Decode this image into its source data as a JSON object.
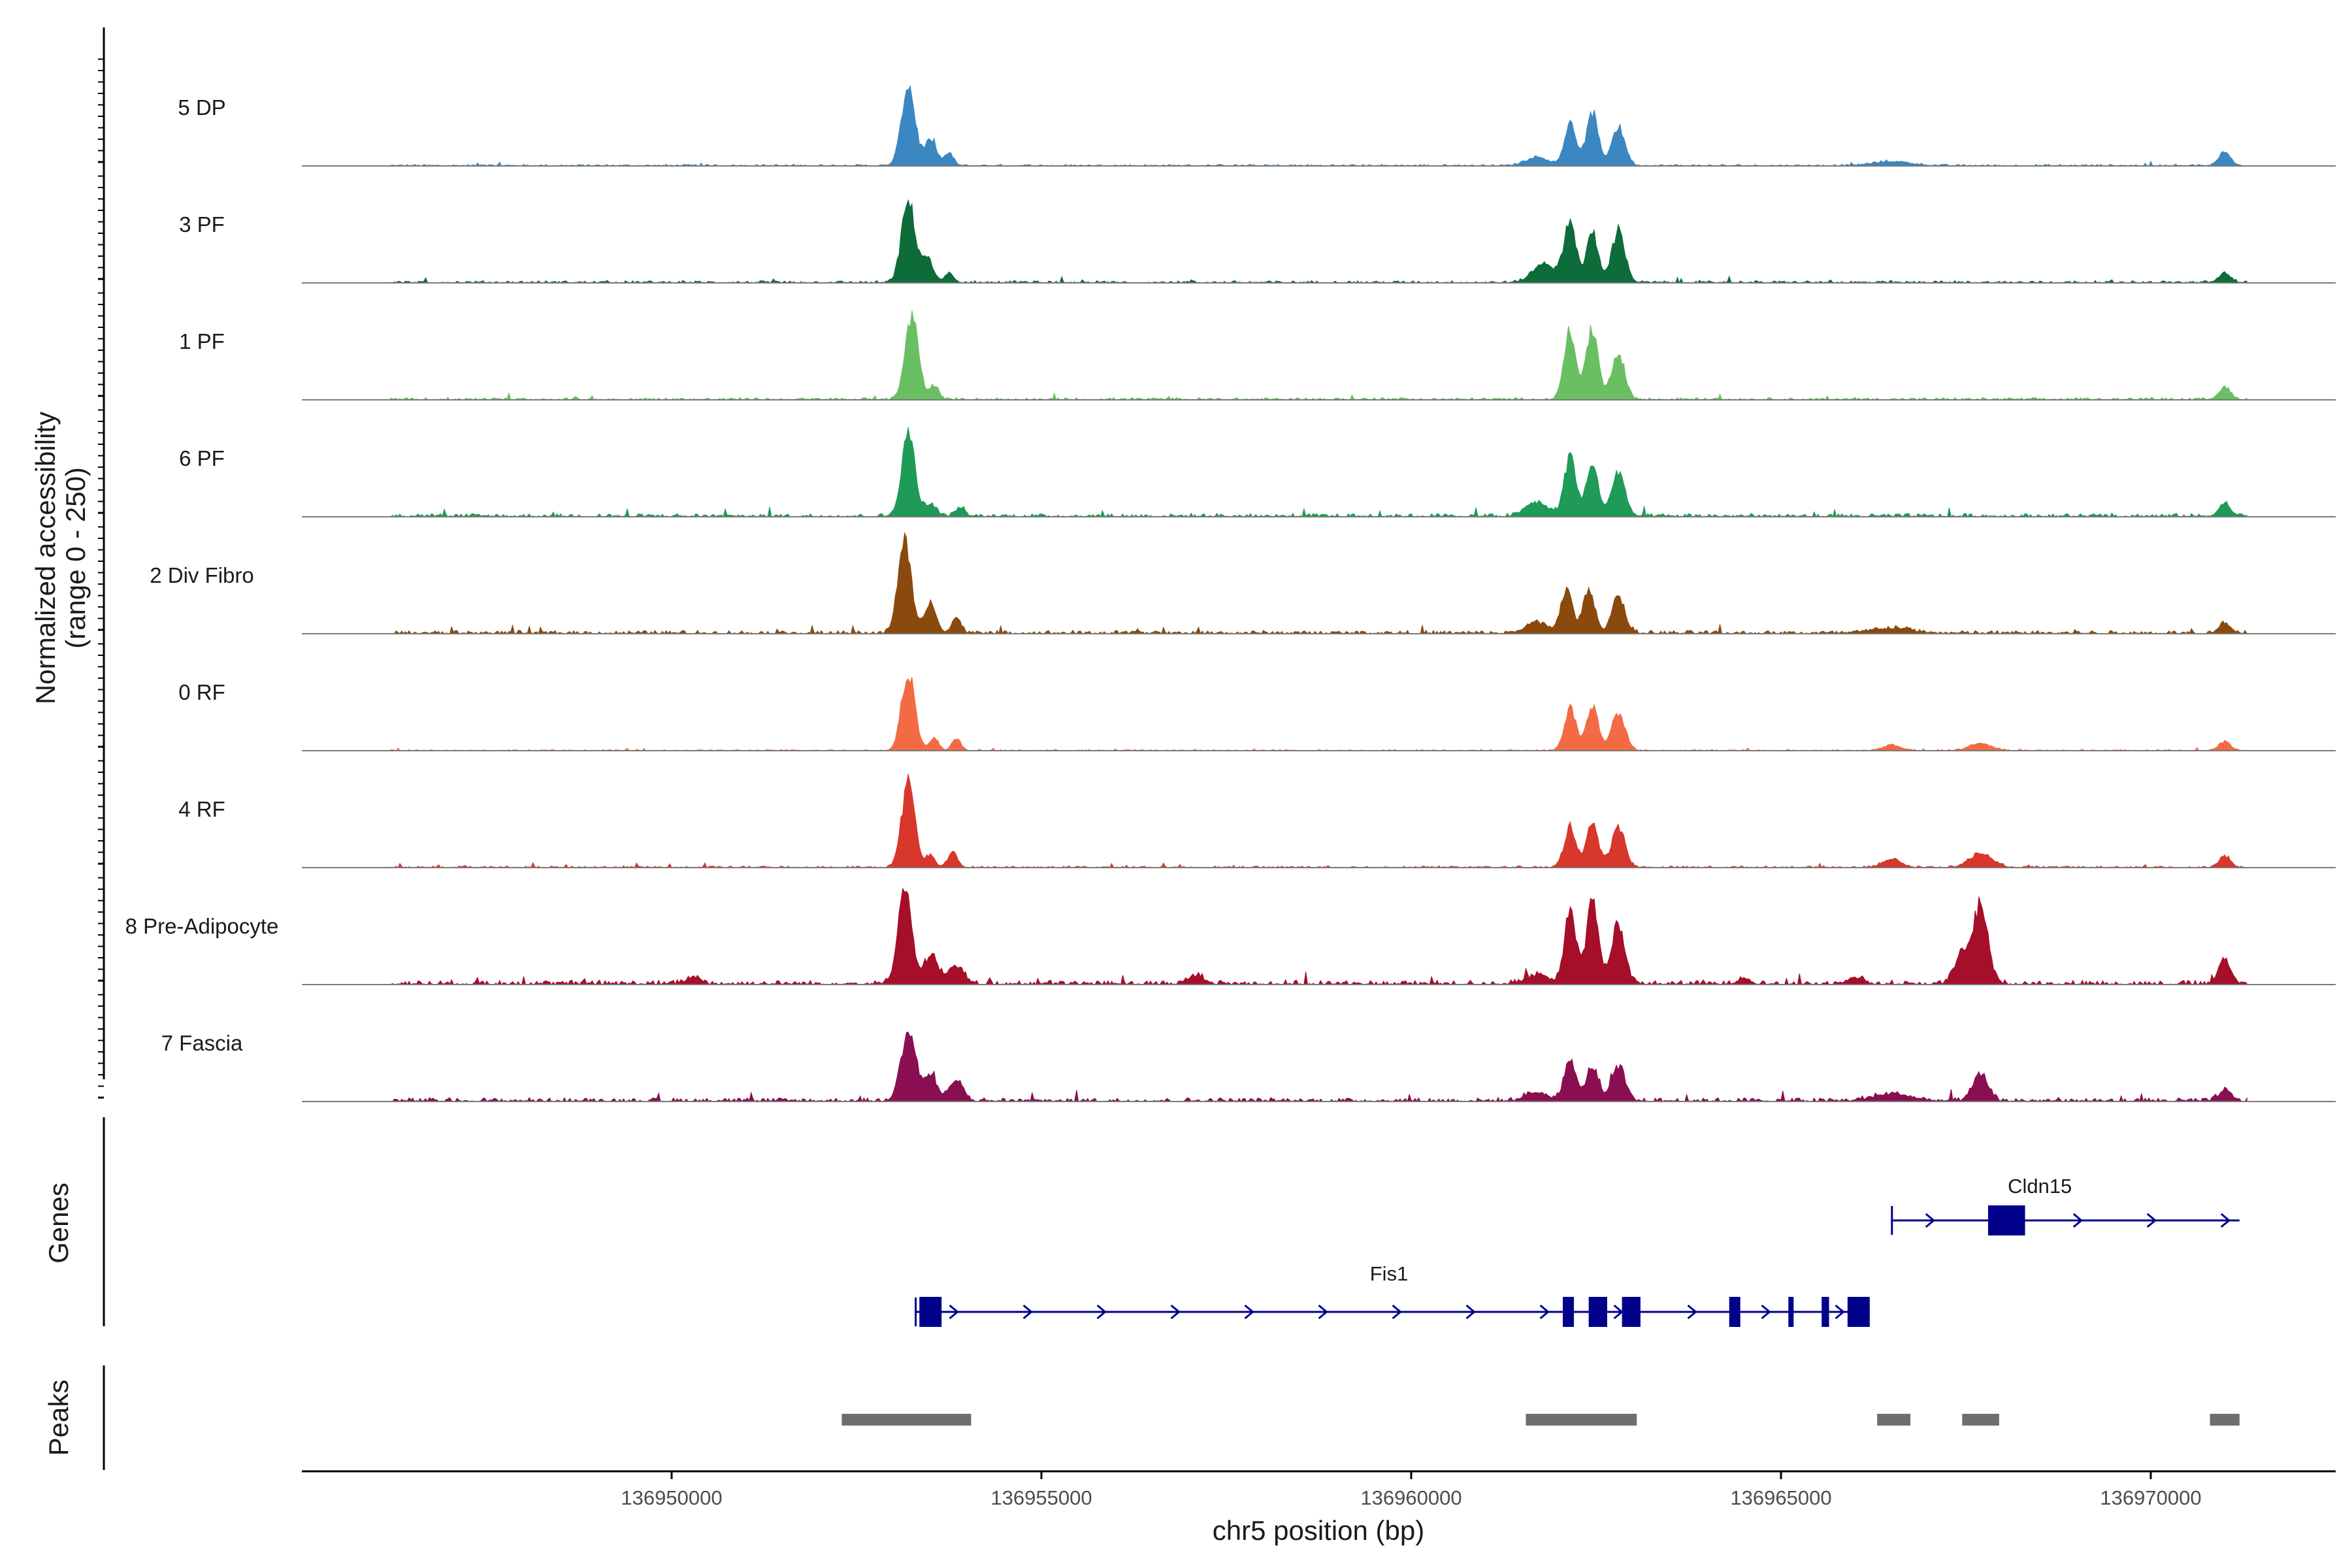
{
  "chart_data": {
    "type": "area",
    "title": "",
    "chromosome": "chr5",
    "xlabel": "chr5 position (bp)",
    "ylabel_line1": "Normalized accessibility",
    "ylabel_line2": "(range 0 - 250)",
    "ylim": [
      0,
      250
    ],
    "xlim": [
      136945000,
      136972500
    ],
    "xticks": [
      136950000,
      136955000,
      136960000,
      136965000,
      136970000
    ],
    "tick_labels": [
      "136950000",
      "136955000",
      "136960000",
      "136965000",
      "136970000"
    ],
    "signal_range": [
      136946200,
      136971300
    ],
    "tracks": [
      {
        "name": "5 DP",
        "color": "#3a87c1",
        "baseline": 3,
        "peaks": [
          [
            136953200,
            230,
            90
          ],
          [
            136953500,
            70,
            80
          ],
          [
            136953750,
            35,
            60
          ],
          [
            136962150,
            120,
            80
          ],
          [
            136962450,
            145,
            80
          ],
          [
            136962800,
            110,
            90
          ],
          [
            136961700,
            25,
            150
          ],
          [
            136966500,
            12,
            250
          ],
          [
            136971000,
            40,
            80
          ]
        ]
      },
      {
        "name": "3 PF",
        "color": "#0e6b3a",
        "baseline": 4,
        "peaks": [
          [
            136953200,
            230,
            90
          ],
          [
            136953450,
            70,
            80
          ],
          [
            136953750,
            25,
            60
          ],
          [
            136962150,
            170,
            80
          ],
          [
            136962450,
            140,
            80
          ],
          [
            136962800,
            145,
            90
          ],
          [
            136961800,
            55,
            150
          ],
          [
            136971000,
            28,
            80
          ]
        ]
      },
      {
        "name": "1 PF",
        "color": "#6abf63",
        "baseline": 4,
        "peaks": [
          [
            136953250,
            240,
            90
          ],
          [
            136953550,
            40,
            60
          ],
          [
            136962150,
            200,
            80
          ],
          [
            136962450,
            200,
            80
          ],
          [
            136962800,
            125,
            90
          ],
          [
            136971000,
            35,
            80
          ]
        ]
      },
      {
        "name": "6 PF",
        "color": "#1f9a57",
        "baseline": 6,
        "peaks": [
          [
            136953200,
            235,
            90
          ],
          [
            136953500,
            35,
            80
          ],
          [
            136953900,
            25,
            60
          ],
          [
            136962150,
            170,
            80
          ],
          [
            136962450,
            145,
            80
          ],
          [
            136962800,
            125,
            90
          ],
          [
            136961700,
            40,
            150
          ],
          [
            136971000,
            35,
            80
          ]
        ]
      },
      {
        "name": "2 Div Fibro",
        "color": "#8b4a0d",
        "baseline": 6,
        "peaks": [
          [
            136953150,
            260,
            90
          ],
          [
            136953500,
            85,
            80
          ],
          [
            136953850,
            45,
            60
          ],
          [
            136962100,
            120,
            80
          ],
          [
            136962400,
            120,
            80
          ],
          [
            136962800,
            105,
            90
          ],
          [
            136961700,
            30,
            150
          ],
          [
            136966500,
            15,
            250
          ],
          [
            136971000,
            30,
            80
          ]
        ]
      },
      {
        "name": "0 RF",
        "color": "#f26b44",
        "baseline": 2,
        "peaks": [
          [
            136953200,
            225,
            90
          ],
          [
            136953550,
            35,
            60
          ],
          [
            136953850,
            35,
            60
          ],
          [
            136962150,
            120,
            80
          ],
          [
            136962450,
            125,
            80
          ],
          [
            136962800,
            110,
            90
          ],
          [
            136966500,
            15,
            120
          ],
          [
            136967700,
            20,
            150
          ],
          [
            136971000,
            25,
            80
          ]
        ]
      },
      {
        "name": "4 RF",
        "color": "#d8372c",
        "baseline": 3,
        "peaks": [
          [
            136953200,
            240,
            90
          ],
          [
            136953500,
            35,
            60
          ],
          [
            136953800,
            45,
            60
          ],
          [
            136962150,
            115,
            80
          ],
          [
            136962450,
            130,
            80
          ],
          [
            136962800,
            115,
            90
          ],
          [
            136966500,
            25,
            120
          ],
          [
            136967700,
            40,
            150
          ],
          [
            136971000,
            30,
            80
          ]
        ]
      },
      {
        "name": "8 Pre-Adipocyte",
        "color": "#a50f2a",
        "baseline": 8,
        "peaks": [
          [
            136953150,
            270,
            90
          ],
          [
            136953500,
            80,
            100
          ],
          [
            136953850,
            50,
            100
          ],
          [
            136962150,
            200,
            80
          ],
          [
            136962450,
            240,
            80
          ],
          [
            136962800,
            175,
            90
          ],
          [
            136961700,
            25,
            150
          ],
          [
            136967700,
            220,
            100
          ],
          [
            136967450,
            90,
            100
          ],
          [
            136971000,
            70,
            80
          ],
          [
            136950300,
            20,
            100
          ],
          [
            136957100,
            25,
            100
          ],
          [
            136966000,
            20,
            100
          ],
          [
            136964500,
            18,
            80
          ]
        ]
      },
      {
        "name": "7 Fascia",
        "color": "#8a0e52",
        "baseline": 7,
        "peaks": [
          [
            136953200,
            200,
            100
          ],
          [
            136953500,
            70,
            90
          ],
          [
            136953850,
            60,
            90
          ],
          [
            136962150,
            115,
            80
          ],
          [
            136962450,
            100,
            80
          ],
          [
            136962800,
            100,
            90
          ],
          [
            136961700,
            25,
            150
          ],
          [
            136966500,
            20,
            250
          ],
          [
            136967700,
            75,
            100
          ],
          [
            136971000,
            30,
            80
          ]
        ]
      }
    ],
    "genes": [
      {
        "name": "Cldn15",
        "strand": "+",
        "start": 136966500,
        "end": 136971200,
        "row": 0,
        "exons": [
          [
            136967800,
            136968300
          ]
        ]
      },
      {
        "name": "Fis1",
        "strand": "+",
        "start": 136953300,
        "end": 136966100,
        "row": 1,
        "exons": [
          [
            136953350,
            136953650
          ],
          [
            136962050,
            136962200
          ],
          [
            136962400,
            136962650
          ],
          [
            136962850,
            136963100
          ],
          [
            136964300,
            136964450
          ],
          [
            136965100,
            136965150
          ],
          [
            136965550,
            136965650
          ],
          [
            136965900,
            136966200
          ]
        ]
      }
    ],
    "peaks": [
      [
        136952300,
        136954050
      ],
      [
        136961550,
        136963050
      ],
      [
        136966300,
        136966750
      ],
      [
        136967450,
        136967950
      ],
      [
        136970800,
        136971200
      ]
    ],
    "panel_labels": {
      "genes": "Genes",
      "peaks": "Peaks"
    }
  }
}
